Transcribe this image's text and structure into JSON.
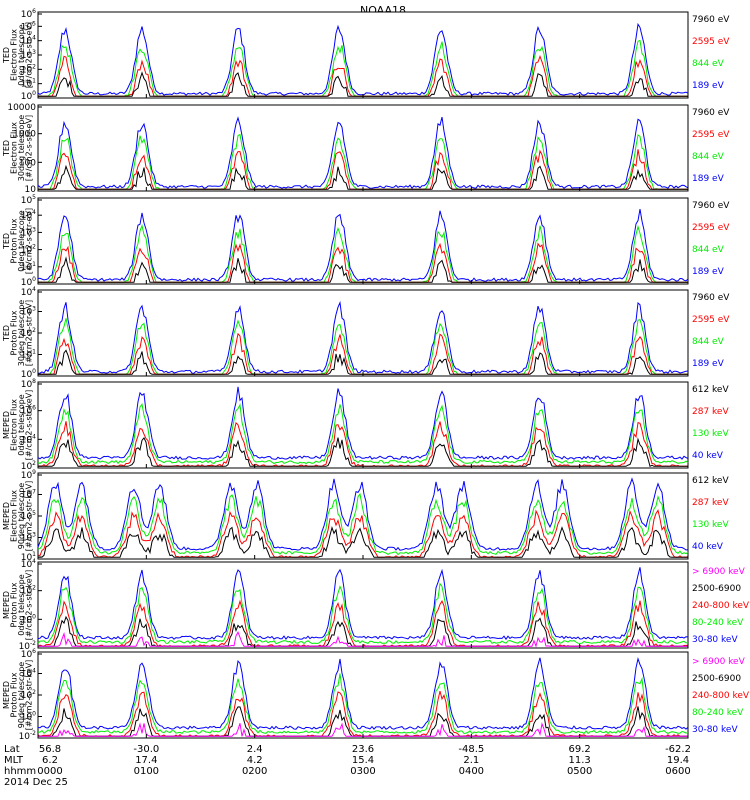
{
  "title": "NOAA18",
  "colors": {
    "black": "#000000",
    "red": "#ff0000",
    "green": "#00ee00",
    "blue": "#0000ff",
    "magenta": "#ff00ff"
  },
  "chart_data": [
    {
      "type": "line",
      "ylabel": [
        "TED",
        "Electron Flux",
        "0deg telescope",
        "[#/cm2-s-str-eV]"
      ],
      "scale": "log",
      "ylim": [
        1,
        1000000
      ],
      "yticks": [
        {
          "base": "10",
          "exp": "0"
        },
        {
          "base": "10",
          "exp": "1"
        },
        {
          "base": "10",
          "exp": "2"
        },
        {
          "base": "10",
          "exp": "3"
        },
        {
          "base": "10",
          "exp": "4"
        },
        {
          "base": "10",
          "exp": "5"
        },
        {
          "base": "10",
          "exp": "6"
        }
      ],
      "legend": [
        {
          "label": "7960 eV",
          "color": "#000000"
        },
        {
          "label": "2595 eV",
          "color": "#ff0000"
        },
        {
          "label": "844 eV",
          "color": "#00ee00"
        },
        {
          "label": "189 eV",
          "color": "#0000ff"
        }
      ],
      "profile": "ted_e"
    },
    {
      "type": "line",
      "ylabel": [
        "TED",
        "Electron Flux",
        "30deg telescope",
        "[#/cm2-s-str-eV]"
      ],
      "scale": "log",
      "ylim": [
        3,
        10000
      ],
      "yticks": [
        {
          "base": "10",
          "exp": ""
        },
        {
          "base": "100",
          "exp": ""
        },
        {
          "base": "1000",
          "exp": ""
        },
        {
          "base": "10000",
          "exp": ""
        }
      ],
      "legend": [
        {
          "label": "7960 eV",
          "color": "#000000"
        },
        {
          "label": "2595 eV",
          "color": "#ff0000"
        },
        {
          "label": "844 eV",
          "color": "#00ee00"
        },
        {
          "label": "189 eV",
          "color": "#0000ff"
        }
      ],
      "profile": "ted_e2"
    },
    {
      "type": "line",
      "ylabel": [
        "TED",
        "Proton Flux",
        "0deg telescope",
        "[#/cm2-s-str-eV]"
      ],
      "scale": "log",
      "ylim": [
        1,
        100000
      ],
      "yticks": [
        {
          "base": "10",
          "exp": "0"
        },
        {
          "base": "10",
          "exp": "1"
        },
        {
          "base": "10",
          "exp": "2"
        },
        {
          "base": "10",
          "exp": "3"
        },
        {
          "base": "10",
          "exp": "4"
        },
        {
          "base": "10",
          "exp": "5"
        }
      ],
      "legend": [
        {
          "label": "7960 eV",
          "color": "#000000"
        },
        {
          "label": "2595 eV",
          "color": "#ff0000"
        },
        {
          "label": "844 eV",
          "color": "#00ee00"
        },
        {
          "label": "189 eV",
          "color": "#0000ff"
        }
      ],
      "profile": "ted_p"
    },
    {
      "type": "line",
      "ylabel": [
        "TED",
        "Proton Flux",
        "30deg telescope",
        "[#/cm2-s-str-eV]"
      ],
      "scale": "log",
      "ylim": [
        1,
        100000
      ],
      "yticks": [
        {
          "base": "10",
          "exp": "0"
        },
        {
          "base": "10",
          "exp": "1"
        },
        {
          "base": "10",
          "exp": "2"
        },
        {
          "base": "10",
          "exp": "3"
        },
        {
          "base": "10",
          "exp": "4"
        }
      ],
      "legend": [
        {
          "label": "7960 eV",
          "color": "#000000"
        },
        {
          "label": "2595 eV",
          "color": "#ff0000"
        },
        {
          "label": "844 eV",
          "color": "#00ee00"
        },
        {
          "label": "189 eV",
          "color": "#0000ff"
        }
      ],
      "profile": "ted_p2"
    },
    {
      "type": "line",
      "ylabel": [
        "MEPED",
        "Electron Flux",
        "0deg telescope",
        "[#/cm2-s-str-keV]"
      ],
      "scale": "log",
      "ylim": [
        100,
        10000000000
      ],
      "yticks": [
        {
          "base": "10",
          "exp": "2"
        },
        {
          "base": "10",
          "exp": "4"
        },
        {
          "base": "10",
          "exp": "6"
        },
        {
          "base": "10",
          "exp": "8"
        }
      ],
      "legend": [
        {
          "label": "612 keV",
          "color": "#000000"
        },
        {
          "label": "287 keV",
          "color": "#ff0000"
        },
        {
          "label": "130 keV",
          "color": "#00ee00"
        },
        {
          "label": "40 keV",
          "color": "#0000ff"
        }
      ],
      "profile": "mep_e0"
    },
    {
      "type": "line",
      "ylabel": [
        "MEPED",
        "Electron Flux",
        "90deg telescope",
        "[#/cm2-s-str-keV]"
      ],
      "scale": "log",
      "ylim": [
        10,
        10000000000
      ],
      "yticks": [
        {
          "base": "10",
          "exp": "1"
        },
        {
          "base": "10",
          "exp": "3"
        },
        {
          "base": "10",
          "exp": "5"
        },
        {
          "base": "10",
          "exp": "7"
        },
        {
          "base": "10",
          "exp": "9"
        }
      ],
      "legend": [
        {
          "label": "612 keV",
          "color": "#000000"
        },
        {
          "label": "287 keV",
          "color": "#ff0000"
        },
        {
          "label": "130 keV",
          "color": "#00ee00"
        },
        {
          "label": "40 keV",
          "color": "#0000ff"
        }
      ],
      "profile": "mep_e90"
    },
    {
      "type": "line",
      "ylabel": [
        "MEPED",
        "Proton Flux",
        "0deg telescope",
        "[#/cm2-s-str-keV]"
      ],
      "scale": "log",
      "ylim": [
        0.001,
        1000000
      ],
      "yticks": [
        {
          "base": "10",
          "exp": "-2"
        },
        {
          "base": "10",
          "exp": "0"
        },
        {
          "base": "10",
          "exp": "2"
        },
        {
          "base": "10",
          "exp": "4"
        }
      ],
      "legend": [
        {
          "label": "> 6900 keV",
          "color": "#ff00ff"
        },
        {
          "label": "2500-6900",
          "color": "#000000"
        },
        {
          "label": "240-800 keV",
          "color": "#ff0000"
        },
        {
          "label": "80-240 keV",
          "color": "#00ee00"
        },
        {
          "label": "30-80 keV",
          "color": "#0000ff"
        }
      ],
      "profile": "mep_p0"
    },
    {
      "type": "line",
      "ylabel": [
        "MEPED",
        "Proton Flux",
        "90deg telescope",
        "[#/cm2-s-str-keV]"
      ],
      "scale": "log",
      "ylim": [
        0.001,
        1000000
      ],
      "yticks": [
        {
          "base": "10",
          "exp": "-2"
        },
        {
          "base": "10",
          "exp": "0"
        },
        {
          "base": "10",
          "exp": "2"
        },
        {
          "base": "10",
          "exp": "4"
        },
        {
          "base": "10",
          "exp": "6"
        }
      ],
      "legend": [
        {
          "label": "> 6900 keV",
          "color": "#ff00ff"
        },
        {
          "label": "2500-6900",
          "color": "#000000"
        },
        {
          "label": "240-800 keV",
          "color": "#ff0000"
        },
        {
          "label": "80-240 keV",
          "color": "#00ee00"
        },
        {
          "label": "30-80 keV",
          "color": "#0000ff"
        }
      ],
      "profile": "mep_p90"
    }
  ],
  "x_axis": {
    "row_labels": [
      "Lat",
      "MLT",
      "hhmm"
    ],
    "date": "2014 Dec 25",
    "xlim_hours": [
      0,
      6
    ],
    "ticks": [
      {
        "t": 0.0,
        "lat": "56.8",
        "mlt": "6.2",
        "hhmm": "0000"
      },
      {
        "t": 1.0,
        "lat": "-30.0",
        "mlt": "17.4",
        "hhmm": "0100"
      },
      {
        "t": 2.0,
        "lat": "2.4",
        "mlt": "4.2",
        "hhmm": "0200"
      },
      {
        "t": 3.0,
        "lat": "23.6",
        "mlt": "15.4",
        "hhmm": "0300"
      },
      {
        "t": 4.0,
        "lat": "-48.5",
        "mlt": "2.1",
        "hhmm": "0400"
      },
      {
        "t": 5.0,
        "lat": "69.2",
        "mlt": "11.3",
        "hhmm": "0500"
      },
      {
        "t": 6.0,
        "lat": "-62.2",
        "mlt": "19.4",
        "hhmm": "0600"
      }
    ]
  }
}
